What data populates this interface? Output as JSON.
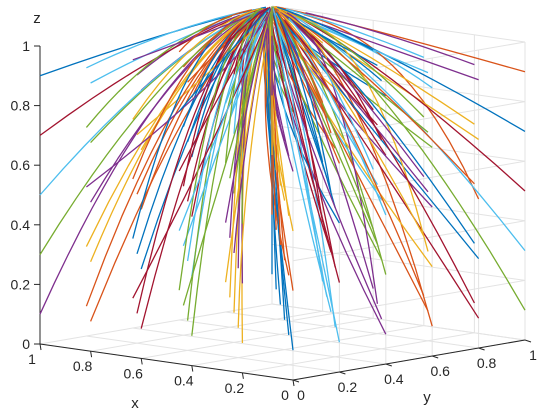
{
  "chart_data": {
    "type": "line",
    "plot_kind": "3d-trajectories",
    "title": "",
    "xlabel": "x",
    "ylabel": "y",
    "zlabel": "z",
    "xlim": [
      0,
      1
    ],
    "ylim": [
      0,
      1
    ],
    "zlim": [
      0,
      1
    ],
    "x_ticks": [
      "0",
      "0.2",
      "0.4",
      "0.6",
      "0.8",
      "1"
    ],
    "y_ticks": [
      "0",
      "0.2",
      "0.4",
      "0.6",
      "0.8",
      "1"
    ],
    "z_ticks": [
      "0",
      "0.2",
      "0.4",
      "0.6",
      "0.8",
      "1"
    ],
    "grid": true,
    "box": true,
    "trajectory_grid": {
      "x0": [
        0.0,
        0.2,
        0.4,
        0.6,
        0.8,
        1.0
      ],
      "y0": [
        0.0,
        0.2,
        0.4,
        0.6,
        0.8,
        1.0
      ],
      "z0": [
        0.1,
        0.3,
        0.5,
        0.7,
        0.9
      ],
      "converge_to": [
        1,
        1,
        1
      ]
    },
    "series_colors": [
      "#0072BD",
      "#D95319",
      "#EDB120",
      "#7E2F8E",
      "#77AC30",
      "#4DBEEE",
      "#A2142F"
    ]
  }
}
